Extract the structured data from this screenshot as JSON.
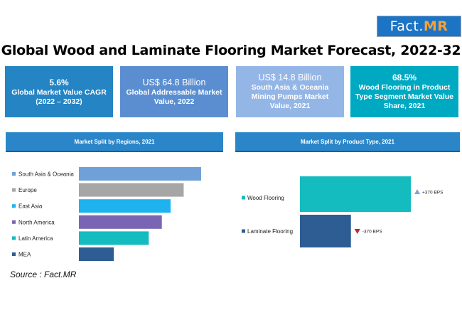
{
  "logo": {
    "text": "Fact.",
    "accent": "MR"
  },
  "title": "Global Wood and Laminate Flooring Market Forecast, 2022-32",
  "kpis": [
    {
      "head": "5.6%",
      "body": "Global Market Value CAGR (2022 – 2032)"
    },
    {
      "head": "US$ 64.8 Billion",
      "body": "Global Addressable Market Value, 2022"
    },
    {
      "head": "US$ 14.8 Billion",
      "body": "South Asia & Oceania Mining Pumps Market Value, 2021"
    },
    {
      "head": "68.5%",
      "body": "Wood Flooring in Product Type Segment Market Value Share, 2021"
    }
  ],
  "panels": {
    "left_title": "Market Split by Regions, 2021",
    "right_title": "Market Split by Product Type, 2021"
  },
  "source": "Source : Fact.MR",
  "chart_data": [
    {
      "type": "bar",
      "orientation": "horizontal",
      "title": "Market Split by Regions, 2021",
      "categories": [
        "South Asia & Oceania",
        "Europe",
        "East Asia",
        "North America",
        "Latin America",
        "MEA"
      ],
      "values": [
        28,
        24,
        21,
        19,
        16,
        8
      ],
      "colors": [
        "#6fa1d8",
        "#a6a6a6",
        "#1eb2ee",
        "#7a65b4",
        "#14bbbf",
        "#2d5d93"
      ]
    },
    {
      "type": "bar",
      "orientation": "horizontal",
      "title": "Market Split by Product Type, 2021",
      "categories": [
        "Wood Flooring",
        "Laminate Flooring"
      ],
      "values": [
        68.5,
        31.5
      ],
      "colors": [
        "#14bbbf",
        "#2d5d93"
      ],
      "changes": [
        {
          "text": "+370 BPS",
          "direction": "up",
          "color": "#7ba6d6"
        },
        {
          "text": "-370 BPS",
          "direction": "down",
          "color": "#c0262c"
        }
      ]
    }
  ]
}
